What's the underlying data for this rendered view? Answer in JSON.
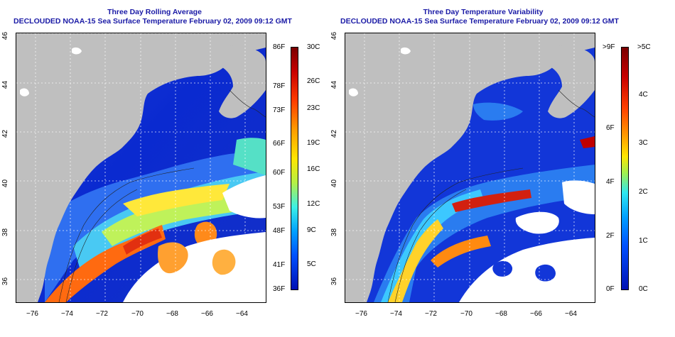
{
  "left_panel": {
    "title_line1": "Three Day Rolling Average",
    "title_line2": "DECLOUDED NOAA-15 Sea Surface Temperature February 02, 2009 09:12 GMT",
    "colorbar": {
      "fahrenheit_labels": [
        "86F",
        "78F",
        "73F",
        "66F",
        "60F",
        "53F",
        "48F",
        "41F",
        "36F"
      ],
      "celsius_labels": [
        "30C",
        "26C",
        "23C",
        "19C",
        "16C",
        "12C",
        "9C",
        "5C"
      ]
    }
  },
  "right_panel": {
    "title_line1": "Three Day Temperature Variability",
    "title_line2": "DECLOUDED NOAA-15 Sea Surface Temperature February 02, 2009 09:12 GMT",
    "colorbar": {
      "fahrenheit_labels": [
        ">9F",
        "6F",
        "4F",
        "2F",
        "0F"
      ],
      "celsius_labels": [
        ">5C",
        "4C",
        "3C",
        "2C",
        "1C",
        "0C"
      ]
    }
  },
  "axes": {
    "lon_labels": [
      "−76",
      "−74",
      "−72",
      "−70",
      "−68",
      "−66",
      "−64"
    ],
    "lat_labels": [
      "46",
      "44",
      "42",
      "40",
      "38",
      "36"
    ]
  },
  "colors": {
    "land": "#bfbfbf",
    "title": "#1a1aa6",
    "cloud": "#ffffff"
  }
}
